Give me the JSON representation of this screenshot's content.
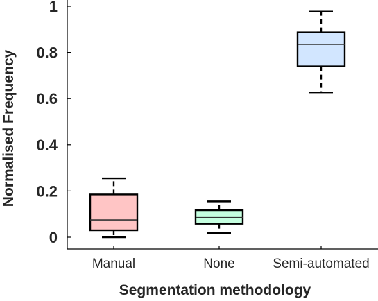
{
  "chart_data": {
    "type": "box",
    "xlabel": "Segmentation methodology",
    "ylabel": "Normalised Frequency",
    "ylim": [
      0,
      1
    ],
    "yticks": [
      0,
      0.2,
      0.4,
      0.6,
      0.8,
      1
    ],
    "ytick_labels": [
      "0",
      "0.2",
      "0.4",
      "0.6",
      "0.8",
      "1"
    ],
    "categories": [
      "Manual",
      "None",
      "Semi-automated"
    ],
    "grid": false,
    "boxes": [
      {
        "category": "Manual",
        "whisker_low": 0.0,
        "q1": 0.03,
        "median": 0.075,
        "q3": 0.185,
        "whisker_high": 0.255,
        "color": "#ffc5c5"
      },
      {
        "category": "None",
        "whisker_low": 0.018,
        "q1": 0.058,
        "median": 0.085,
        "q3": 0.117,
        "whisker_high": 0.155,
        "color": "#c5ffe0"
      },
      {
        "category": "Semi-automated",
        "whisker_low": 0.627,
        "q1": 0.74,
        "median": 0.835,
        "q3": 0.887,
        "whisker_high": 0.977,
        "color": "#d2e6ff"
      }
    ]
  }
}
